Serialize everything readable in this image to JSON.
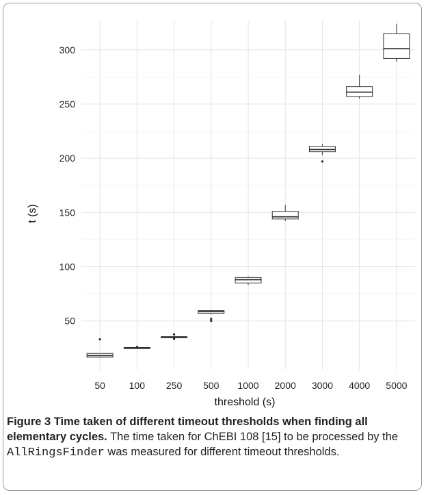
{
  "chart_data": {
    "type": "box",
    "xlabel": "threshold (s)",
    "ylabel": "t (s)",
    "categories": [
      "50",
      "100",
      "250",
      "500",
      "1000",
      "2000",
      "3000",
      "4000",
      "5000"
    ],
    "ylim": [
      5,
      327
    ],
    "yticks": [
      50,
      100,
      150,
      200,
      250,
      300
    ],
    "grid": true,
    "boxes": [
      {
        "category": "50",
        "min": 16,
        "q1": 16.5,
        "median": 18,
        "q3": 20,
        "max": 20,
        "outliers": [
          33
        ]
      },
      {
        "category": "100",
        "min": 24.5,
        "q1": 24.5,
        "median": 25,
        "q3": 25.5,
        "max": 25.5,
        "outliers": [
          26
        ]
      },
      {
        "category": "250",
        "min": 34,
        "q1": 34.5,
        "median": 35,
        "q3": 35.5,
        "max": 36,
        "outliers": [
          33.5,
          37.5
        ]
      },
      {
        "category": "500",
        "min": 56,
        "q1": 57,
        "median": 58.5,
        "q3": 59.5,
        "max": 60,
        "outliers": [
          50,
          52
        ]
      },
      {
        "category": "1000",
        "min": 83,
        "q1": 85,
        "median": 88,
        "q3": 90,
        "max": 91,
        "outliers": []
      },
      {
        "category": "2000",
        "min": 142,
        "q1": 144,
        "median": 146,
        "q3": 151,
        "max": 157,
        "outliers": []
      },
      {
        "category": "3000",
        "min": 203,
        "q1": 206,
        "median": 208,
        "q3": 211,
        "max": 213,
        "outliers": [
          197
        ]
      },
      {
        "category": "4000",
        "min": 255,
        "q1": 257,
        "median": 261,
        "q3": 266,
        "max": 277,
        "outliers": []
      },
      {
        "category": "5000",
        "min": 289,
        "q1": 292,
        "median": 301,
        "q3": 315,
        "max": 324,
        "outliers": []
      }
    ]
  },
  "caption": {
    "heading": "Figure 3 Time taken of different timeout thresholds when finding all elementary cycles.",
    "text_before_code": " The time taken for ChEBI 108 [15] to be processed by the ",
    "code": "AllRingsFinder",
    "text_after_code": " was measured for different timeout thresholds."
  }
}
